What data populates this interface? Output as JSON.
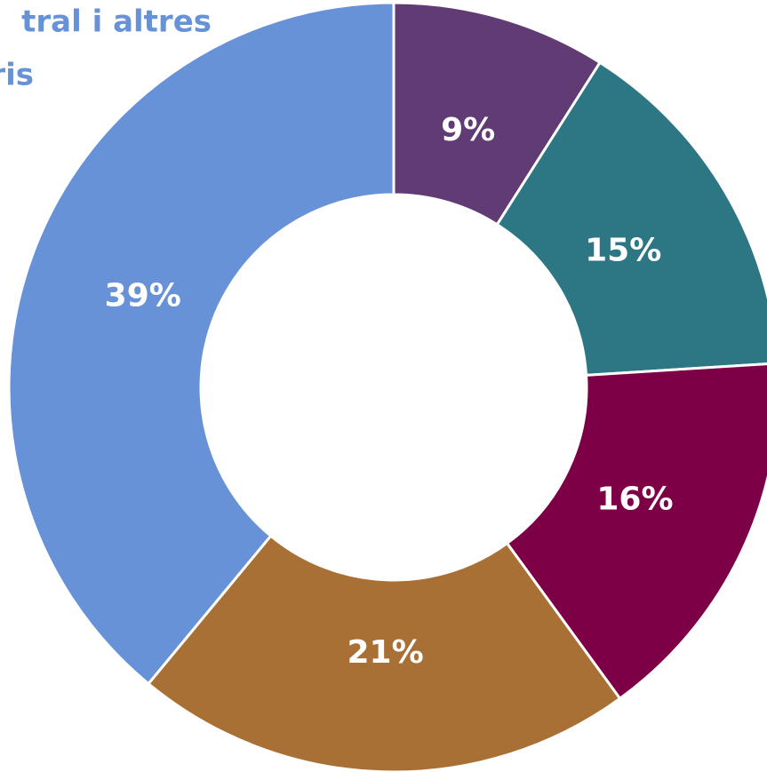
{
  "chart_data": {
    "type": "pie",
    "annotation_lines": [
      "tral i altres",
      "ris"
    ],
    "values": [
      9,
      15,
      16,
      21,
      39
    ],
    "value_labels": [
      "9%",
      "15%",
      "16%",
      "21%",
      "39%"
    ],
    "colors": [
      "#613b74",
      "#2d7784",
      "#7d0047",
      "#a97035",
      "#6792d8"
    ],
    "donut": true
  }
}
